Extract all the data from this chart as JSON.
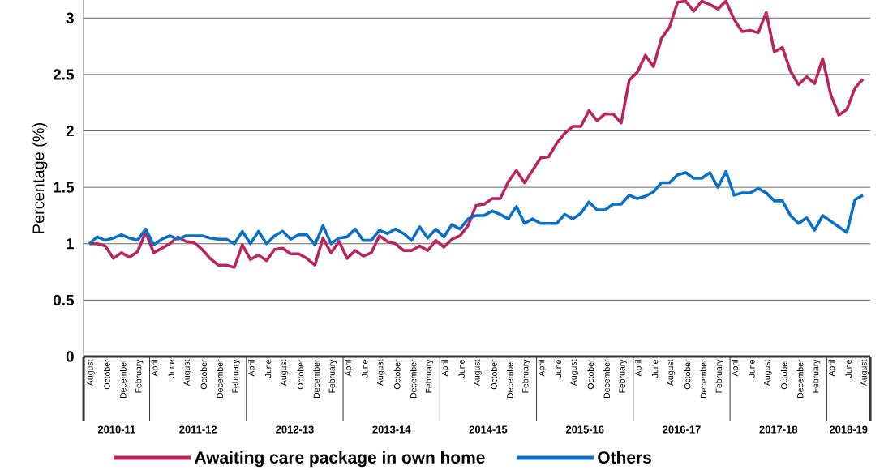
{
  "chart_data": {
    "type": "line",
    "ylabel": "Percentage (%)",
    "categories": [
      "August",
      null,
      "October",
      null,
      "December",
      null,
      "February",
      null,
      "April",
      null,
      "June",
      null,
      "August",
      null,
      "October",
      null,
      "December",
      null,
      "February",
      null,
      "April",
      null,
      "June",
      null,
      "August",
      null,
      "October",
      null,
      "December",
      null,
      "February",
      null,
      "April",
      null,
      "June",
      null,
      "August",
      null,
      "October",
      null,
      "December",
      null,
      "February",
      null,
      "April",
      null,
      "June",
      null,
      "August",
      null,
      "October",
      null,
      "December",
      null,
      "February",
      null,
      "April",
      null,
      "June",
      null,
      "August",
      null,
      "October",
      null,
      "December",
      null,
      "February",
      null,
      "April",
      null,
      "June",
      null,
      "August",
      null,
      "October",
      null,
      "December",
      null,
      "February",
      null,
      "April",
      null,
      "June",
      null,
      "August",
      null,
      "October",
      null,
      "December",
      null,
      "February",
      null,
      "April",
      null,
      "June",
      null,
      "August"
    ],
    "series": [
      {
        "name": "Awaiting care package in own home",
        "color": "#b8255f",
        "values": [
          1.0,
          1.0,
          0.98,
          0.87,
          0.92,
          0.88,
          0.93,
          1.1,
          0.92,
          0.96,
          1.0,
          1.06,
          1.02,
          1.01,
          0.95,
          0.87,
          0.81,
          0.81,
          0.79,
          0.99,
          0.86,
          0.9,
          0.85,
          0.95,
          0.96,
          0.91,
          0.91,
          0.87,
          0.81,
          1.05,
          0.92,
          1.02,
          0.87,
          0.94,
          0.89,
          0.92,
          1.07,
          1.02,
          1.0,
          0.94,
          0.94,
          0.98,
          0.94,
          1.03,
          0.97,
          1.04,
          1.07,
          1.16,
          1.34,
          1.35,
          1.4,
          1.4,
          1.55,
          1.65,
          1.54,
          1.65,
          1.76,
          1.77,
          1.89,
          1.98,
          2.04,
          2.04,
          2.18,
          2.09,
          2.15,
          2.15,
          2.07,
          2.45,
          2.52,
          2.67,
          2.57,
          2.82,
          2.92,
          3.14,
          3.15,
          3.06,
          3.15,
          3.12,
          3.08,
          3.15,
          2.99,
          2.88,
          2.89,
          2.87,
          3.05,
          2.7,
          2.74,
          2.53,
          2.41,
          2.48,
          2.42,
          2.64,
          2.32,
          2.14,
          2.19,
          2.38,
          2.46
        ]
      },
      {
        "name": "Others",
        "color": "#0a70c6",
        "values": [
          1.0,
          1.06,
          1.03,
          1.05,
          1.08,
          1.05,
          1.03,
          1.13,
          0.99,
          1.04,
          1.07,
          1.04,
          1.07,
          1.07,
          1.07,
          1.05,
          1.04,
          1.04,
          1.0,
          1.11,
          1.0,
          1.11,
          1.0,
          1.07,
          1.11,
          1.04,
          1.08,
          1.08,
          0.99,
          1.16,
          1.0,
          1.05,
          1.06,
          1.13,
          1.03,
          1.03,
          1.12,
          1.09,
          1.13,
          1.09,
          1.03,
          1.15,
          1.05,
          1.13,
          1.06,
          1.17,
          1.13,
          1.22,
          1.25,
          1.25,
          1.29,
          1.26,
          1.22,
          1.33,
          1.18,
          1.22,
          1.18,
          1.18,
          1.18,
          1.26,
          1.22,
          1.27,
          1.37,
          1.3,
          1.3,
          1.35,
          1.35,
          1.43,
          1.4,
          1.42,
          1.46,
          1.54,
          1.54,
          1.61,
          1.63,
          1.58,
          1.58,
          1.63,
          1.5,
          1.64,
          1.43,
          1.45,
          1.45,
          1.49,
          1.45,
          1.38,
          1.38,
          1.25,
          1.18,
          1.23,
          1.12,
          1.25,
          1.2,
          1.15,
          1.1,
          1.39,
          1.43
        ]
      }
    ],
    "ylim": [
      0,
      3.16
    ],
    "yticks": [
      0,
      0.5,
      1,
      1.5,
      2,
      2.5,
      3
    ],
    "grid": "y",
    "legend": "bottom",
    "annotations": [
      "2010-11",
      "2011-12",
      "2012-13",
      "2013-14",
      "2014-15",
      "2015-16",
      "2016-17",
      "2017-18",
      "2018-19"
    ]
  }
}
